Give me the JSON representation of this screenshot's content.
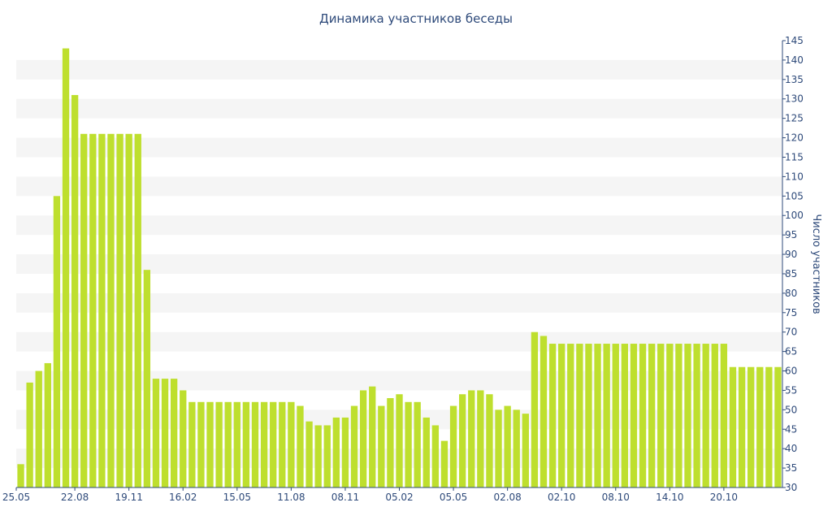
{
  "chart_data": {
    "type": "bar",
    "title": "Динамика участников беседы",
    "xlabel": "",
    "ylabel": "Число участников",
    "ylim": [
      30,
      145
    ],
    "ytick_step": 5,
    "grid": "horizontal bands",
    "x_tick_labels": [
      {
        "index": 0,
        "label": "25.05"
      },
      {
        "index": 6,
        "label": "22.08"
      },
      {
        "index": 12,
        "label": "19.11"
      },
      {
        "index": 18,
        "label": "16.02"
      },
      {
        "index": 24,
        "label": "15.05"
      },
      {
        "index": 30,
        "label": "11.08"
      },
      {
        "index": 36,
        "label": "08.11"
      },
      {
        "index": 42,
        "label": "05.02"
      },
      {
        "index": 48,
        "label": "05.05"
      },
      {
        "index": 54,
        "label": "02.08"
      },
      {
        "index": 60,
        "label": "02.10"
      },
      {
        "index": 66,
        "label": "08.10"
      },
      {
        "index": 72,
        "label": "14.10"
      },
      {
        "index": 78,
        "label": "20.10"
      }
    ],
    "values": [
      36,
      57,
      60,
      62,
      105,
      143,
      131,
      121,
      121,
      121,
      121,
      121,
      121,
      121,
      86,
      58,
      58,
      58,
      55,
      52,
      52,
      52,
      52,
      52,
      52,
      52,
      52,
      52,
      52,
      52,
      52,
      51,
      47,
      46,
      46,
      48,
      48,
      51,
      55,
      56,
      51,
      53,
      54,
      52,
      52,
      48,
      46,
      42,
      51,
      54,
      55,
      55,
      54,
      50,
      51,
      50,
      49,
      70,
      69,
      67,
      67,
      67,
      67,
      67,
      67,
      67,
      67,
      67,
      67,
      67,
      67,
      67,
      67,
      67,
      67,
      67,
      67,
      67,
      67,
      61,
      61,
      61,
      61,
      61,
      61
    ],
    "colors": {
      "bar": "#bedf2e",
      "band": "#f5f5f5",
      "text": "#2e4a7a",
      "axis": "#2e4a7a"
    }
  }
}
